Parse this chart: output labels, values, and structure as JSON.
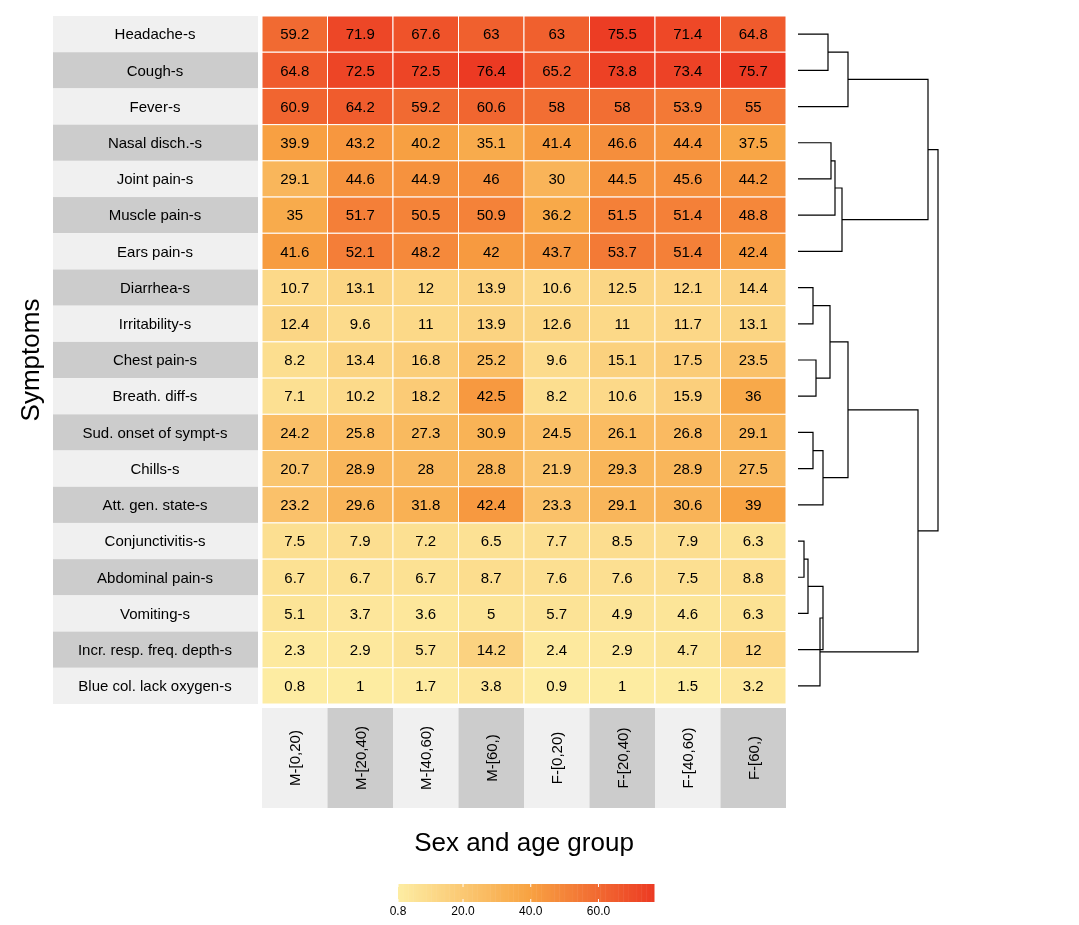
{
  "chart_data": {
    "type": "heatmap",
    "xlabel": "Sex and age group",
    "ylabel": "Symptoms",
    "categories": [
      "M-[0,20)",
      "M-[20,40)",
      "M-[40,60)",
      "M-[60,)",
      "F-[0,20)",
      "F-[20,40)",
      "F-[40,60)",
      "F-[60,)"
    ],
    "y_categories": [
      "Headache-s",
      "Cough-s",
      "Fever-s",
      "Nasal disch.-s",
      "Joint pain-s",
      "Muscle pain-s",
      "Ears pain-s",
      "Diarrhea-s",
      "Irritability-s",
      "Chest pain-s",
      "Breath. diff-s",
      "Sud. onset of sympt-s",
      "Chills-s",
      "Att. gen. state-s",
      "Conjunctivitis-s",
      "Abdominal pain-s",
      "Vomiting-s",
      "Incr. resp. freq. depth-s",
      "Blue col. lack oxygen-s"
    ],
    "cells": [
      [
        59.2,
        71.9,
        67.6,
        63,
        63,
        75.5,
        71.4,
        64.8
      ],
      [
        64.8,
        72.5,
        72.5,
        76.4,
        65.2,
        73.8,
        73.4,
        75.7
      ],
      [
        60.9,
        64.2,
        59.2,
        60.6,
        58,
        58,
        53.9,
        55
      ],
      [
        39.9,
        43.2,
        40.2,
        35.1,
        41.4,
        46.6,
        44.4,
        37.5
      ],
      [
        29.1,
        44.6,
        44.9,
        46,
        30,
        44.5,
        45.6,
        44.2
      ],
      [
        35,
        51.7,
        50.5,
        50.9,
        36.2,
        51.5,
        51.4,
        48.8
      ],
      [
        41.6,
        52.1,
        48.2,
        42,
        43.7,
        53.7,
        51.4,
        42.4
      ],
      [
        10.7,
        13.1,
        12,
        13.9,
        10.6,
        12.5,
        12.1,
        14.4
      ],
      [
        12.4,
        9.6,
        11,
        13.9,
        12.6,
        11,
        11.7,
        13.1
      ],
      [
        8.2,
        13.4,
        16.8,
        25.2,
        9.6,
        15.1,
        17.5,
        23.5
      ],
      [
        7.1,
        10.2,
        18.2,
        42.5,
        8.2,
        10.6,
        15.9,
        36
      ],
      [
        24.2,
        25.8,
        27.3,
        30.9,
        24.5,
        26.1,
        26.8,
        29.1
      ],
      [
        20.7,
        28.9,
        28,
        28.8,
        21.9,
        29.3,
        28.9,
        27.5
      ],
      [
        23.2,
        29.6,
        31.8,
        42.4,
        23.3,
        29.1,
        30.6,
        39
      ],
      [
        7.5,
        7.9,
        7.2,
        6.5,
        7.7,
        8.5,
        7.9,
        6.3
      ],
      [
        6.7,
        6.7,
        6.7,
        8.7,
        7.6,
        7.6,
        7.5,
        8.8
      ],
      [
        5.1,
        3.7,
        3.6,
        5,
        5.7,
        4.9,
        4.6,
        6.3
      ],
      [
        2.3,
        2.9,
        5.7,
        14.2,
        2.4,
        2.9,
        4.7,
        12
      ],
      [
        0.8,
        1,
        1.7,
        3.8,
        0.9,
        1,
        1.5,
        3.2
      ]
    ],
    "data_labels": true,
    "clim": [
      0.8,
      76.4
    ],
    "cticks": [
      {
        "value": 0.8,
        "label": "0.8"
      },
      {
        "value": 20,
        "label": "20.0"
      },
      {
        "value": 40,
        "label": "40.0"
      },
      {
        "value": 60,
        "label": "60.0"
      }
    ]
  }
}
